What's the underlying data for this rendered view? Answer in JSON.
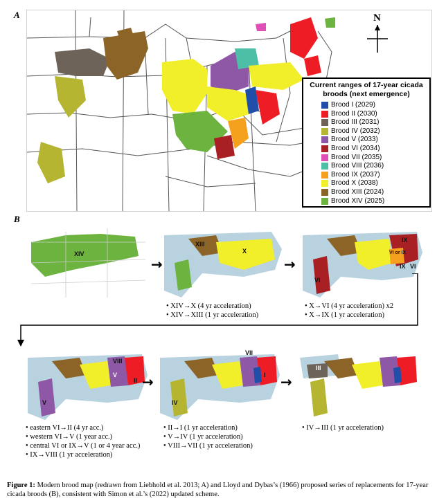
{
  "panel_a_label": "A",
  "panel_b_label": "B",
  "compass": {
    "letter": "N"
  },
  "legend": {
    "title_line1": "Current ranges of 17-year cicada",
    "title_line2": "broods (next emergence)",
    "items": [
      {
        "label": "Brood I (2029)",
        "color": "#1f4fa8"
      },
      {
        "label": "Brood II (2030)",
        "color": "#ee1c24"
      },
      {
        "label": "Brood III (2031)",
        "color": "#6d6359"
      },
      {
        "label": "Brood IV (2032)",
        "color": "#b5b531"
      },
      {
        "label": "Brood V (2033)",
        "color": "#8e58a6"
      },
      {
        "label": "Brood VI (2034)",
        "color": "#a81f24"
      },
      {
        "label": "Brood VII (2035)",
        "color": "#e04fb5"
      },
      {
        "label": "Brood VIII (2036)",
        "color": "#4dbfa6"
      },
      {
        "label": "Brood IX (2037)",
        "color": "#f5a11e"
      },
      {
        "label": "Brood X (2038)",
        "color": "#f1ee2a"
      },
      {
        "label": "Brood XIII (2024)",
        "color": "#8c6428"
      },
      {
        "label": "Brood XIV (2025)",
        "color": "#6db33f"
      }
    ]
  },
  "panel_b": {
    "map1": {
      "labels": [
        "XIV"
      ]
    },
    "map2": {
      "labels": [
        "XIII",
        "X"
      ],
      "bullets": [
        "• XIV→X (4 yr acceleration)",
        "• XIV→XIII (1 yr acceleration)"
      ]
    },
    "map3": {
      "labels": [
        "IX",
        "VI or IX",
        "IX",
        "VI",
        "VI"
      ],
      "bullets": [
        "• X→VI (4 yr acceleration) x2",
        "• X→IX (1 yr acceleration)"
      ]
    },
    "map4": {
      "labels": [
        "VIII",
        "V",
        "II",
        "V"
      ],
      "bullets": [
        "• eastern VI→II (4 yr acc.)",
        "• western VI→V (1 year acc.)",
        "• central VI or IX→V (1 or 4 year acc.)",
        "• IX→VIII (1 yr acceleration)"
      ]
    },
    "map5": {
      "labels": [
        "VII",
        "I",
        "IV"
      ],
      "bullets": [
        "• II→I (1 yr acceleration)",
        "• V→IV (1 yr acceleration)",
        "• VIII→VII (1 yr acceleration)"
      ]
    },
    "map6": {
      "labels": [
        "III"
      ],
      "bullets": [
        "• IV→III (1 yr acceleration)"
      ]
    }
  },
  "caption": {
    "fig": "Figure 1:",
    "text": " Modern brood map (redrawn from Liebhold et al. 2013; A) and Lloyd and Dybas’s (1966) proposed series of replacements for 17-year cicada broods (B), consistent with Simon et al.’s (2022) updated scheme."
  }
}
